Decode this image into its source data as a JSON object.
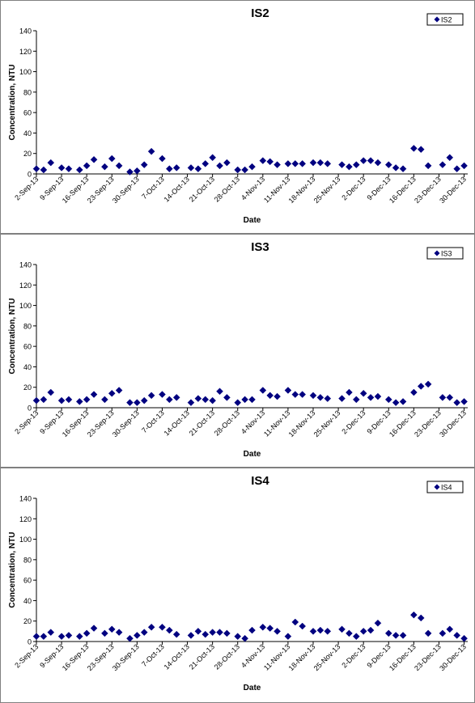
{
  "chart_data": [
    {
      "type": "scatter",
      "title": "IS2",
      "xlabel": "Date",
      "ylabel": "Concentration, NTU",
      "ylim": [
        0,
        140
      ],
      "yticks": [
        0,
        20,
        40,
        60,
        80,
        100,
        120,
        140
      ],
      "xlim": [
        "2013-09-02",
        "2013-12-31"
      ],
      "xtick_labels": [
        "2-Sep-13",
        "9-Sep-13",
        "16-Sep-13",
        "23-Sep-13",
        "30-Sep-13",
        "7-Oct-13",
        "14-Oct-13",
        "21-Oct-13",
        "28-Oct-13",
        "4-Nov-13",
        "11-Nov-13",
        "18-Nov-13",
        "25-Nov-13",
        "2-Dec-13",
        "9-Dec-13",
        "16-Dec-13",
        "23-Dec-13",
        "30-Dec-13"
      ],
      "grid": false,
      "legend_position": "top-right",
      "color": "#000080",
      "series": [
        {
          "name": "IS2",
          "points": [
            [
              "2013-09-02",
              5
            ],
            [
              "2013-09-04",
              4
            ],
            [
              "2013-09-06",
              11
            ],
            [
              "2013-09-09",
              6
            ],
            [
              "2013-09-11",
              5
            ],
            [
              "2013-09-14",
              4
            ],
            [
              "2013-09-16",
              8
            ],
            [
              "2013-09-18",
              14
            ],
            [
              "2013-09-21",
              7
            ],
            [
              "2013-09-23",
              15
            ],
            [
              "2013-09-25",
              8
            ],
            [
              "2013-09-28",
              2
            ],
            [
              "2013-09-30",
              3
            ],
            [
              "2013-10-02",
              9
            ],
            [
              "2013-10-04",
              22
            ],
            [
              "2013-10-07",
              15
            ],
            [
              "2013-10-09",
              5
            ],
            [
              "2013-10-11",
              6
            ],
            [
              "2013-10-15",
              6
            ],
            [
              "2013-10-17",
              5
            ],
            [
              "2013-10-19",
              10
            ],
            [
              "2013-10-21",
              16
            ],
            [
              "2013-10-23",
              8
            ],
            [
              "2013-10-25",
              11
            ],
            [
              "2013-10-28",
              4
            ],
            [
              "2013-10-30",
              4
            ],
            [
              "2013-11-01",
              7
            ],
            [
              "2013-11-04",
              13
            ],
            [
              "2013-11-06",
              12
            ],
            [
              "2013-11-08",
              9
            ],
            [
              "2013-11-11",
              10
            ],
            [
              "2013-11-13",
              10
            ],
            [
              "2013-11-15",
              10
            ],
            [
              "2013-11-18",
              11
            ],
            [
              "2013-11-20",
              11
            ],
            [
              "2013-11-22",
              10
            ],
            [
              "2013-11-26",
              9
            ],
            [
              "2013-11-28",
              7
            ],
            [
              "2013-11-30",
              9
            ],
            [
              "2013-12-02",
              13
            ],
            [
              "2013-12-04",
              13
            ],
            [
              "2013-12-06",
              11
            ],
            [
              "2013-12-09",
              9
            ],
            [
              "2013-12-11",
              6
            ],
            [
              "2013-12-13",
              5
            ],
            [
              "2013-12-16",
              25
            ],
            [
              "2013-12-18",
              24
            ],
            [
              "2013-12-20",
              8
            ],
            [
              "2013-12-24",
              9
            ],
            [
              "2013-12-26",
              16
            ],
            [
              "2013-12-28",
              5
            ],
            [
              "2013-12-30",
              8
            ]
          ]
        }
      ]
    },
    {
      "type": "scatter",
      "title": "IS3",
      "xlabel": "Date",
      "ylabel": "Concentration, NTU",
      "ylim": [
        0,
        140
      ],
      "yticks": [
        0,
        20,
        40,
        60,
        80,
        100,
        120,
        140
      ],
      "xlim": [
        "2013-09-02",
        "2013-12-31"
      ],
      "xtick_labels": [
        "2-Sep-13",
        "9-Sep-13",
        "16-Sep-13",
        "23-Sep-13",
        "30-Sep-13",
        "7-Oct-13",
        "14-Oct-13",
        "21-Oct-13",
        "28-Oct-13",
        "4-Nov-13",
        "11-Nov-13",
        "18-Nov-13",
        "25-Nov-13",
        "2-Dec-13",
        "9-Dec-13",
        "16-Dec-13",
        "23-Dec-13",
        "30-Dec-13"
      ],
      "grid": false,
      "legend_position": "top-right",
      "color": "#000080",
      "series": [
        {
          "name": "IS3",
          "points": [
            [
              "2013-09-02",
              7
            ],
            [
              "2013-09-04",
              8
            ],
            [
              "2013-09-06",
              15
            ],
            [
              "2013-09-09",
              7
            ],
            [
              "2013-09-11",
              8
            ],
            [
              "2013-09-14",
              6
            ],
            [
              "2013-09-16",
              8
            ],
            [
              "2013-09-18",
              13
            ],
            [
              "2013-09-21",
              8
            ],
            [
              "2013-09-23",
              14
            ],
            [
              "2013-09-25",
              17
            ],
            [
              "2013-09-28",
              5
            ],
            [
              "2013-09-30",
              5
            ],
            [
              "2013-10-02",
              7
            ],
            [
              "2013-10-04",
              12
            ],
            [
              "2013-10-07",
              13
            ],
            [
              "2013-10-09",
              8
            ],
            [
              "2013-10-11",
              10
            ],
            [
              "2013-10-15",
              5
            ],
            [
              "2013-10-17",
              9
            ],
            [
              "2013-10-19",
              8
            ],
            [
              "2013-10-21",
              7
            ],
            [
              "2013-10-23",
              16
            ],
            [
              "2013-10-25",
              10
            ],
            [
              "2013-10-28",
              5
            ],
            [
              "2013-10-30",
              8
            ],
            [
              "2013-11-01",
              8
            ],
            [
              "2013-11-04",
              17
            ],
            [
              "2013-11-06",
              12
            ],
            [
              "2013-11-08",
              11
            ],
            [
              "2013-11-11",
              17
            ],
            [
              "2013-11-13",
              13
            ],
            [
              "2013-11-15",
              13
            ],
            [
              "2013-11-18",
              12
            ],
            [
              "2013-11-20",
              10
            ],
            [
              "2013-11-22",
              9
            ],
            [
              "2013-11-26",
              9
            ],
            [
              "2013-11-28",
              15
            ],
            [
              "2013-11-30",
              8
            ],
            [
              "2013-12-02",
              14
            ],
            [
              "2013-12-04",
              10
            ],
            [
              "2013-12-06",
              11
            ],
            [
              "2013-12-09",
              8
            ],
            [
              "2013-12-11",
              5
            ],
            [
              "2013-12-13",
              6
            ],
            [
              "2013-12-16",
              15
            ],
            [
              "2013-12-18",
              21
            ],
            [
              "2013-12-20",
              23
            ],
            [
              "2013-12-24",
              10
            ],
            [
              "2013-12-26",
              10
            ],
            [
              "2013-12-28",
              5
            ],
            [
              "2013-12-30",
              6
            ]
          ]
        }
      ]
    },
    {
      "type": "scatter",
      "title": "IS4",
      "xlabel": "Date",
      "ylabel": "Concentration, NTU",
      "ylim": [
        0,
        140
      ],
      "yticks": [
        0,
        20,
        40,
        60,
        80,
        100,
        120,
        140
      ],
      "xlim": [
        "2013-09-02",
        "2013-12-31"
      ],
      "xtick_labels": [
        "2-Sep-13",
        "9-Sep-13",
        "16-Sep-13",
        "23-Sep-13",
        "30-Sep-13",
        "7-Oct-13",
        "14-Oct-13",
        "21-Oct-13",
        "28-Oct-13",
        "4-Nov-13",
        "11-Nov-13",
        "18-Nov-13",
        "25-Nov-13",
        "2-Dec-13",
        "9-Dec-13",
        "16-Dec-13",
        "23-Dec-13",
        "30-Dec-13"
      ],
      "grid": false,
      "legend_position": "top-right",
      "color": "#000080",
      "series": [
        {
          "name": "IS4",
          "points": [
            [
              "2013-09-02",
              5
            ],
            [
              "2013-09-04",
              5
            ],
            [
              "2013-09-06",
              9
            ],
            [
              "2013-09-09",
              5
            ],
            [
              "2013-09-11",
              6
            ],
            [
              "2013-09-14",
              5
            ],
            [
              "2013-09-16",
              8
            ],
            [
              "2013-09-18",
              13
            ],
            [
              "2013-09-21",
              8
            ],
            [
              "2013-09-23",
              12
            ],
            [
              "2013-09-25",
              9
            ],
            [
              "2013-09-28",
              3
            ],
            [
              "2013-09-30",
              6
            ],
            [
              "2013-10-02",
              9
            ],
            [
              "2013-10-04",
              14
            ],
            [
              "2013-10-07",
              14
            ],
            [
              "2013-10-09",
              11
            ],
            [
              "2013-10-11",
              7
            ],
            [
              "2013-10-15",
              6
            ],
            [
              "2013-10-17",
              10
            ],
            [
              "2013-10-19",
              7
            ],
            [
              "2013-10-21",
              9
            ],
            [
              "2013-10-23",
              9
            ],
            [
              "2013-10-25",
              8
            ],
            [
              "2013-10-28",
              5
            ],
            [
              "2013-10-30",
              3
            ],
            [
              "2013-11-01",
              11
            ],
            [
              "2013-11-04",
              14
            ],
            [
              "2013-11-06",
              13
            ],
            [
              "2013-11-08",
              10
            ],
            [
              "2013-11-11",
              5
            ],
            [
              "2013-11-13",
              19
            ],
            [
              "2013-11-15",
              15
            ],
            [
              "2013-11-18",
              10
            ],
            [
              "2013-11-20",
              11
            ],
            [
              "2013-11-22",
              10
            ],
            [
              "2013-11-26",
              12
            ],
            [
              "2013-11-28",
              8
            ],
            [
              "2013-11-30",
              5
            ],
            [
              "2013-12-02",
              10
            ],
            [
              "2013-12-04",
              11
            ],
            [
              "2013-12-06",
              18
            ],
            [
              "2013-12-09",
              8
            ],
            [
              "2013-12-11",
              6
            ],
            [
              "2013-12-13",
              6
            ],
            [
              "2013-12-16",
              26
            ],
            [
              "2013-12-18",
              23
            ],
            [
              "2013-12-20",
              8
            ],
            [
              "2013-12-24",
              8
            ],
            [
              "2013-12-26",
              12
            ],
            [
              "2013-12-28",
              6
            ],
            [
              "2013-12-30",
              3
            ]
          ]
        }
      ]
    }
  ]
}
